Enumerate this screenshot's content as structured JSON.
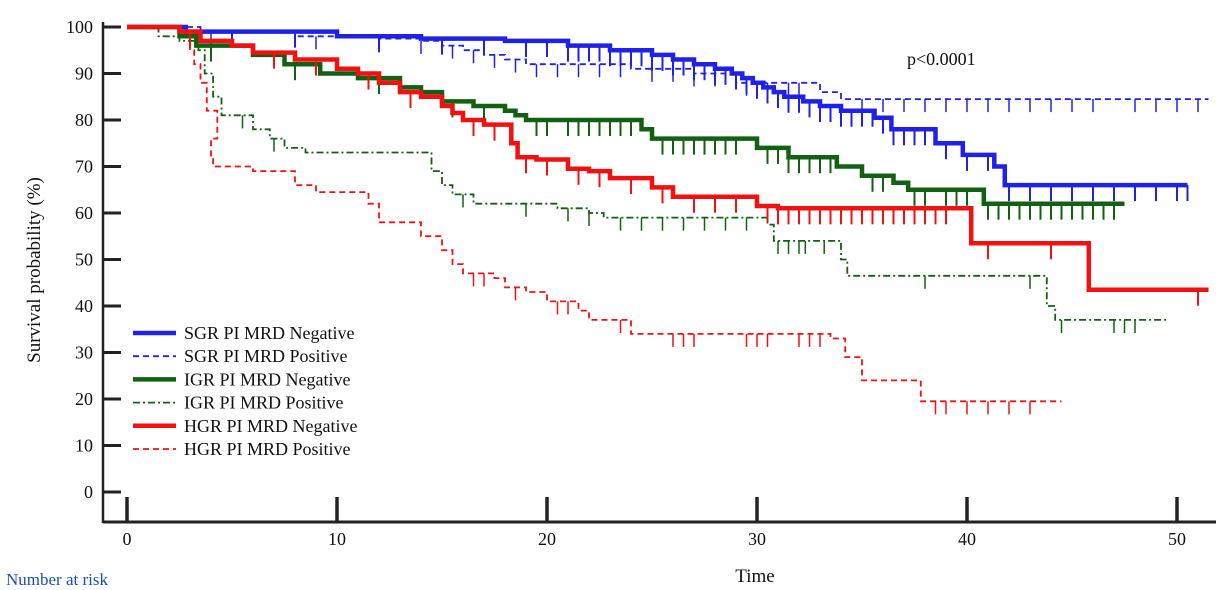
{
  "caption": "Number at risk",
  "chart_data": {
    "type": "line",
    "title": "",
    "xlabel": "Time",
    "ylabel": "Survival probability (%)",
    "xlim": [
      0,
      51.5
    ],
    "ylim": [
      -3,
      102
    ],
    "xticks": [
      0,
      10,
      20,
      30,
      40,
      50
    ],
    "yticks": [
      0,
      10,
      20,
      30,
      40,
      50,
      60,
      70,
      80,
      90,
      100
    ],
    "grid": false,
    "legend_position": "bottom-left",
    "annotation": "p<0.0001",
    "series": [
      {
        "name": "SGR PI MRD Negative",
        "color": "#1f22e6",
        "dash": "solid",
        "width": 4.5,
        "steps": [
          [
            0,
            100
          ],
          [
            2.8,
            99
          ],
          [
            10,
            98
          ],
          [
            14,
            97.5
          ],
          [
            18,
            97
          ],
          [
            21,
            96
          ],
          [
            23,
            95
          ],
          [
            25,
            94
          ],
          [
            26,
            93
          ],
          [
            27,
            92
          ],
          [
            28,
            91
          ],
          [
            28.8,
            90
          ],
          [
            29.3,
            89
          ],
          [
            29.8,
            88
          ],
          [
            30.3,
            87
          ],
          [
            30.8,
            86
          ],
          [
            31.3,
            85
          ],
          [
            32.2,
            84
          ],
          [
            33,
            83
          ],
          [
            34,
            82
          ],
          [
            35.6,
            80.5
          ],
          [
            36.4,
            78
          ],
          [
            38.5,
            75
          ],
          [
            39.8,
            72.5
          ],
          [
            41.3,
            70
          ],
          [
            41.8,
            66
          ],
          [
            50.5,
            66
          ]
        ],
        "censor": [
          5,
          8,
          12,
          15,
          17,
          19,
          20,
          21,
          21.5,
          22,
          22.5,
          23,
          23.5,
          24,
          24.5,
          25,
          25.5,
          26,
          26.5,
          27,
          27.5,
          28,
          28.5,
          29,
          29.5,
          30,
          30.5,
          31,
          31.5,
          32,
          32.5,
          33,
          33.5,
          34,
          34.5,
          35,
          35.5,
          36,
          36.5,
          37,
          37.5,
          38,
          39,
          40,
          41,
          42,
          43,
          44,
          45,
          46,
          47,
          48,
          49,
          50,
          50.5
        ]
      },
      {
        "name": "SGR PI MRD Positive",
        "color": "#1f22e6",
        "dash": "6,4",
        "width": 1.8,
        "steps": [
          [
            0,
            100
          ],
          [
            3.5,
            99
          ],
          [
            8,
            98
          ],
          [
            12,
            97.5
          ],
          [
            14,
            97
          ],
          [
            15,
            96
          ],
          [
            16,
            95
          ],
          [
            17,
            94
          ],
          [
            18,
            93
          ],
          [
            19,
            92
          ],
          [
            24,
            91
          ],
          [
            27,
            90
          ],
          [
            29,
            88
          ],
          [
            33,
            86
          ],
          [
            34,
            84.5
          ],
          [
            51.5,
            84.5
          ]
        ],
        "censor": [
          4,
          9,
          14,
          15.5,
          16.5,
          17.5,
          18.5,
          19.5,
          20.5,
          21.5,
          22.5,
          23.5,
          25,
          26,
          27,
          28,
          29.5,
          30.5,
          31.5,
          32,
          35,
          36,
          37,
          38,
          39,
          40,
          41,
          42,
          43,
          44,
          45,
          46,
          48,
          49,
          50,
          51
        ]
      },
      {
        "name": "IGR PI MRD Negative",
        "color": "#126012",
        "dash": "solid",
        "width": 4.5,
        "steps": [
          [
            0,
            100
          ],
          [
            2.5,
            98
          ],
          [
            3.3,
            96
          ],
          [
            6,
            94
          ],
          [
            7.5,
            92
          ],
          [
            9.2,
            90
          ],
          [
            11,
            89
          ],
          [
            13,
            87
          ],
          [
            14,
            86
          ],
          [
            15,
            84
          ],
          [
            16.5,
            83
          ],
          [
            18,
            82
          ],
          [
            18.5,
            81
          ],
          [
            19,
            80
          ],
          [
            24.5,
            78
          ],
          [
            25,
            76
          ],
          [
            30,
            74
          ],
          [
            31.5,
            72
          ],
          [
            33.8,
            70
          ],
          [
            35,
            68
          ],
          [
            36.5,
            66.5
          ],
          [
            37.2,
            65
          ],
          [
            40.8,
            62
          ],
          [
            47.5,
            62
          ]
        ],
        "censor": [
          4,
          8,
          12,
          15.5,
          17,
          19.5,
          20,
          21,
          21.5,
          22,
          22.5,
          23,
          23.5,
          24,
          25.5,
          26,
          26.5,
          27,
          27.5,
          28,
          28.5,
          29,
          30.5,
          31,
          31.5,
          32,
          32.5,
          33,
          33.5,
          35.5,
          36,
          37.5,
          38,
          39,
          39.5,
          40,
          41,
          41.5,
          42,
          42.5,
          43,
          43.5,
          44,
          44.5,
          45,
          45.5,
          46,
          46.5,
          47
        ]
      },
      {
        "name": "IGR PI MRD Positive",
        "color": "#126012",
        "dash": "7,3,2,3",
        "width": 1.8,
        "steps": [
          [
            0,
            100
          ],
          [
            1.5,
            98
          ],
          [
            2.5,
            97
          ],
          [
            3.4,
            95
          ],
          [
            3.7,
            90
          ],
          [
            4.1,
            85
          ],
          [
            4.5,
            81
          ],
          [
            6,
            78
          ],
          [
            6.8,
            76
          ],
          [
            7.5,
            74
          ],
          [
            8.5,
            73
          ],
          [
            14.5,
            69
          ],
          [
            15,
            66
          ],
          [
            15.5,
            64
          ],
          [
            16.5,
            62
          ],
          [
            20.5,
            61
          ],
          [
            22,
            60
          ],
          [
            22.7,
            59
          ],
          [
            30.5,
            57.5
          ],
          [
            30.8,
            54
          ],
          [
            34,
            50
          ],
          [
            34.3,
            46.5
          ],
          [
            43.8,
            40
          ],
          [
            44.2,
            37
          ],
          [
            49.5,
            37
          ]
        ],
        "censor": [
          5.5,
          7,
          16,
          19,
          21,
          22,
          23.5,
          24.5,
          25.5,
          26.5,
          27.5,
          28.5,
          29.5,
          31,
          31.5,
          32,
          32.3,
          33.2,
          38,
          43,
          44.5,
          47,
          47.5,
          48
        ]
      },
      {
        "name": "HGR PI MRD Negative",
        "color": "#f21010",
        "dash": "solid",
        "width": 4.5,
        "steps": [
          [
            0,
            100
          ],
          [
            2.5,
            99
          ],
          [
            3.5,
            97
          ],
          [
            5,
            96
          ],
          [
            6,
            94.5
          ],
          [
            8,
            93
          ],
          [
            10,
            91
          ],
          [
            11,
            90
          ],
          [
            12,
            88
          ],
          [
            13,
            86
          ],
          [
            14,
            85
          ],
          [
            15,
            83
          ],
          [
            15.5,
            81.5
          ],
          [
            16,
            80
          ],
          [
            17,
            79
          ],
          [
            18.3,
            75
          ],
          [
            18.6,
            72
          ],
          [
            19.5,
            71.5
          ],
          [
            21,
            69.5
          ],
          [
            22,
            69
          ],
          [
            23,
            67.5
          ],
          [
            25,
            65.5
          ],
          [
            26,
            63.5
          ],
          [
            30,
            61.5
          ],
          [
            31,
            61
          ],
          [
            40.2,
            53.5
          ],
          [
            45.8,
            43.5
          ],
          [
            51.5,
            43.5
          ]
        ],
        "censor": [
          3,
          7,
          9,
          11.5,
          13.5,
          16.5,
          17.5,
          19,
          20,
          21.5,
          22.5,
          24,
          25.5,
          27,
          28,
          29,
          30.5,
          31,
          31.5,
          32,
          32.5,
          33,
          33.5,
          34,
          34.5,
          35,
          35.5,
          36,
          36.5,
          37,
          37.5,
          38,
          38.5,
          39,
          41,
          44,
          51
        ]
      },
      {
        "name": "HGR PI MRD Positive",
        "color": "#f21010",
        "dash": "6,4",
        "width": 1.8,
        "steps": [
          [
            0,
            100
          ],
          [
            2.5,
            98
          ],
          [
            3,
            95
          ],
          [
            3.2,
            92
          ],
          [
            3.5,
            88
          ],
          [
            3.8,
            82
          ],
          [
            4.3,
            76
          ],
          [
            4,
            72
          ],
          [
            4.1,
            70
          ],
          [
            6,
            69
          ],
          [
            8,
            66
          ],
          [
            9,
            64.5
          ],
          [
            11.5,
            62
          ],
          [
            12,
            58
          ],
          [
            14,
            55
          ],
          [
            15,
            52
          ],
          [
            15.5,
            49
          ],
          [
            16,
            47
          ],
          [
            17.5,
            46
          ],
          [
            18,
            44
          ],
          [
            19,
            43
          ],
          [
            20,
            41
          ],
          [
            21.5,
            39
          ],
          [
            22,
            37
          ],
          [
            24,
            34
          ],
          [
            33.5,
            33
          ],
          [
            34.2,
            29
          ],
          [
            35,
            24
          ],
          [
            37.8,
            19.5
          ],
          [
            44.5,
            19.5
          ]
        ],
        "censor": [
          16.5,
          17,
          18.5,
          20.5,
          21,
          23.5,
          26,
          26.5,
          27,
          29.5,
          30,
          30.5,
          32,
          32.5,
          33,
          38.5,
          39,
          40,
          41,
          42,
          43
        ]
      }
    ]
  }
}
